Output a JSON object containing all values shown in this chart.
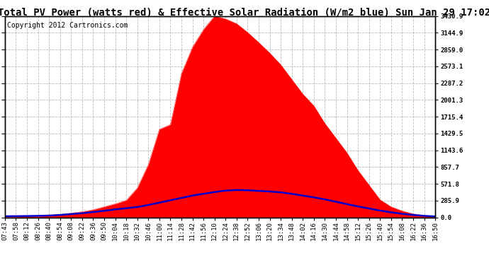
{
  "title": "Total PV Power (watts red) & Effective Solar Radiation (W/m2 blue) Sun Jan 29 17:02",
  "copyright": "Copyright 2012 Cartronics.com",
  "ylabel_right_ticks": [
    0.0,
    285.9,
    571.8,
    857.7,
    1143.6,
    1429.5,
    1715.4,
    2001.3,
    2287.2,
    2573.1,
    2859.0,
    3144.9,
    3430.9
  ],
  "ymax": 3430.9,
  "ymin": 0.0,
  "background_color": "#ffffff",
  "plot_bg_color": "#ffffff",
  "grid_color": "#bbbbbb",
  "red_color": "#ff0000",
  "blue_color": "#0000cc",
  "x_times": [
    "07:43",
    "07:58",
    "08:12",
    "08:26",
    "08:40",
    "08:54",
    "09:08",
    "09:22",
    "09:36",
    "09:50",
    "10:04",
    "10:18",
    "10:32",
    "10:46",
    "11:00",
    "11:14",
    "11:28",
    "11:42",
    "11:56",
    "12:10",
    "12:24",
    "12:38",
    "12:52",
    "13:06",
    "13:20",
    "13:34",
    "13:48",
    "14:02",
    "14:16",
    "14:30",
    "14:44",
    "14:58",
    "15:12",
    "15:26",
    "15:40",
    "15:54",
    "16:08",
    "16:22",
    "16:36",
    "16:50"
  ],
  "pv_power": [
    5,
    8,
    12,
    18,
    30,
    50,
    70,
    95,
    130,
    180,
    230,
    290,
    500,
    900,
    1500,
    1580,
    2450,
    2900,
    3200,
    3430,
    3380,
    3300,
    3150,
    2980,
    2800,
    2600,
    2350,
    2100,
    1900,
    1600,
    1350,
    1100,
    800,
    550,
    300,
    180,
    110,
    60,
    30,
    10
  ],
  "solar_rad": [
    18,
    20,
    22,
    25,
    30,
    40,
    55,
    70,
    90,
    110,
    135,
    155,
    175,
    210,
    250,
    290,
    330,
    370,
    400,
    430,
    455,
    465,
    460,
    450,
    440,
    425,
    400,
    370,
    340,
    305,
    265,
    225,
    185,
    150,
    115,
    85,
    60,
    40,
    25,
    15
  ],
  "title_fontsize": 10,
  "tick_fontsize": 6.5,
  "copyright_fontsize": 7
}
